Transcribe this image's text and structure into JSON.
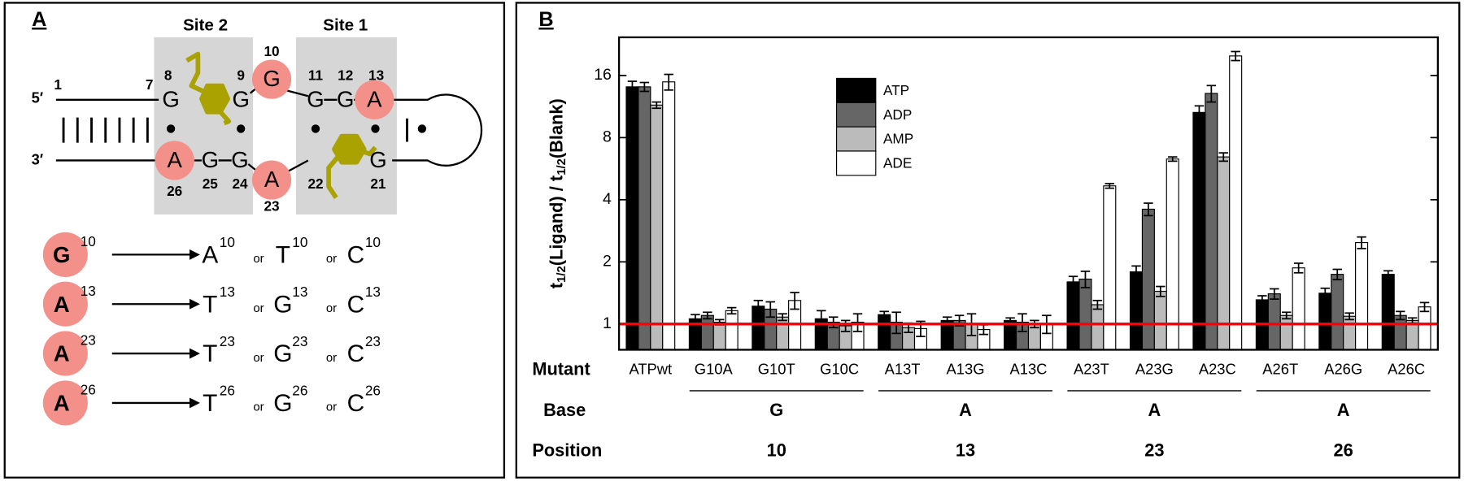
{
  "panel_labels": {
    "a": "A",
    "b": "B"
  },
  "diagram": {
    "sites": [
      "Site 2",
      "Site 1"
    ],
    "strand_ends": {
      "five": "5′",
      "three": "3′"
    },
    "end_numbers": [
      "1",
      "7"
    ],
    "top": [
      {
        "base": "G",
        "number": "8",
        "circled": false
      },
      {
        "base": "G",
        "number": "9",
        "circled": false
      },
      {
        "base": "G",
        "number": "10",
        "circled": true
      },
      {
        "base": "G",
        "number": "11",
        "circled": false
      },
      {
        "base": "G",
        "number": "12",
        "circled": false
      },
      {
        "base": "A",
        "number": "13",
        "circled": true
      }
    ],
    "bottom": [
      {
        "base": "A",
        "number": "26",
        "circled": true
      },
      {
        "base": "G",
        "number": "25",
        "circled": false
      },
      {
        "base": "G",
        "number": "24",
        "circled": false
      },
      {
        "base": "A",
        "number": "23",
        "circled": true
      },
      {
        "base": null,
        "number": "22",
        "circled": false
      },
      {
        "base": "G",
        "number": "21",
        "circled": false
      }
    ],
    "connector": "or",
    "mutations": [
      {
        "base": "G",
        "position": "10",
        "options": [
          "A",
          "T",
          "C"
        ]
      },
      {
        "base": "A",
        "position": "13",
        "options": [
          "T",
          "G",
          "C"
        ]
      },
      {
        "base": "A",
        "position": "23",
        "options": [
          "T",
          "G",
          "C"
        ]
      },
      {
        "base": "A",
        "position": "26",
        "options": [
          "T",
          "G",
          "C"
        ]
      }
    ]
  },
  "chart_data": {
    "type": "bar",
    "ylabel": [
      "t",
      "1/2",
      "(Ligand) / t",
      "1/2",
      "(Blank)"
    ],
    "yscale": "log",
    "log_base": 2,
    "ylim": [
      0.75,
      24.5
    ],
    "yticks": [
      1,
      2,
      4,
      8,
      16
    ],
    "grid": false,
    "legend": "upper center",
    "reference_line": {
      "value": 1,
      "color": "#ff0000"
    },
    "row_labels": {
      "mutant": "Mutant",
      "base": "Base",
      "position": "Position"
    },
    "categories": [
      "ATPwt",
      "G10A",
      "G10T",
      "G10C",
      "A13T",
      "A13G",
      "A13C",
      "A23T",
      "A23G",
      "A23C",
      "A26T",
      "A26G",
      "A26C"
    ],
    "groups": [
      {
        "base": "G",
        "position": "10",
        "members": [
          "G10A",
          "G10T",
          "G10C"
        ]
      },
      {
        "base": "A",
        "position": "13",
        "members": [
          "A13T",
          "A13G",
          "A13C"
        ]
      },
      {
        "base": "A",
        "position": "23",
        "members": [
          "A23T",
          "A23G",
          "A23C"
        ]
      },
      {
        "base": "A",
        "position": "26",
        "members": [
          "A26T",
          "A26G",
          "A26C"
        ]
      }
    ],
    "series": [
      {
        "name": "ATP",
        "color": "#000000",
        "values": [
          14.1,
          1.06,
          1.22,
          1.06,
          1.11,
          1.04,
          1.04,
          1.6,
          1.79,
          10.6,
          1.31,
          1.41,
          1.74
        ],
        "errors": [
          0.9,
          0.05,
          0.08,
          0.1,
          0.04,
          0.04,
          0.03,
          0.1,
          0.12,
          0.8,
          0.06,
          0.08,
          0.07
        ]
      },
      {
        "name": "ADP",
        "color": "#666666",
        "values": [
          14.1,
          1.1,
          1.18,
          1.02,
          1.02,
          1.04,
          1.02,
          1.65,
          3.6,
          13.1,
          1.4,
          1.74,
          1.1
        ],
        "errors": [
          0.7,
          0.04,
          0.1,
          0.06,
          0.12,
          0.06,
          0.1,
          0.15,
          0.25,
          1.2,
          0.08,
          0.1,
          0.05
        ]
      },
      {
        "name": "AMP",
        "color": "#bbbbbb",
        "values": [
          11.5,
          1.02,
          1.08,
          0.98,
          0.96,
          1.0,
          1.0,
          1.24,
          1.44,
          6.45,
          1.1,
          1.09,
          1.04
        ],
        "errors": [
          0.4,
          0.03,
          0.04,
          0.06,
          0.05,
          0.12,
          0.04,
          0.06,
          0.08,
          0.3,
          0.04,
          0.04,
          0.03
        ]
      },
      {
        "name": "ADE",
        "color": "#ffffff",
        "values": [
          14.9,
          1.16,
          1.3,
          1.02,
          0.95,
          0.94,
          1.0,
          4.67,
          6.3,
          19.9,
          1.87,
          2.48,
          1.21
        ],
        "errors": [
          1.3,
          0.04,
          0.12,
          0.1,
          0.08,
          0.05,
          0.1,
          0.12,
          0.15,
          1.0,
          0.1,
          0.16,
          0.06
        ]
      }
    ]
  }
}
